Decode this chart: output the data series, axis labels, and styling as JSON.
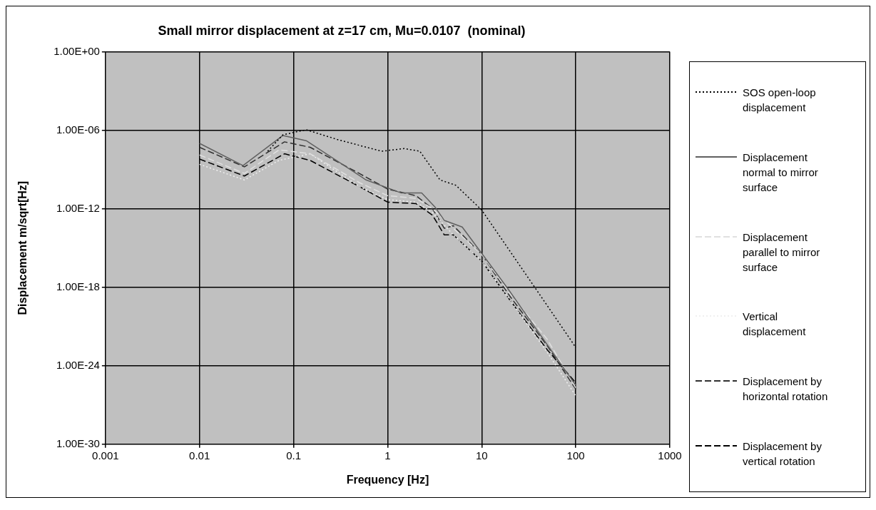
{
  "chart_data": {
    "type": "line",
    "title": "Small mirror displacement at z=17 cm, Mu=0.0107  (nominal)",
    "xlabel": "Frequency [Hz]",
    "ylabel": "Displacement m/sqrt[Hz]",
    "log": "xy",
    "grid": true,
    "legend": "right",
    "xlim": [
      0.001,
      1000
    ],
    "xticks": [
      0.001,
      0.01,
      0.1,
      1,
      10,
      100,
      1000
    ],
    "ylim": [
      1e-30,
      1
    ],
    "yticks": [
      {
        "value": 1,
        "label": "1.00E+00"
      },
      {
        "value": 1e-06,
        "label": "1.00E-06"
      },
      {
        "value": 1e-12,
        "label": "1.00E-12"
      },
      {
        "value": 1e-18,
        "label": "1.00E-18"
      },
      {
        "value": 1e-24,
        "label": "1.00E-24"
      },
      {
        "value": 1e-30,
        "label": "1.00E-30"
      }
    ],
    "series": [
      {
        "name": "SOS open-loop displacement",
        "color": "#000000",
        "line_style": "dotted",
        "x": [
          0.053,
          0.077,
          0.136,
          0.29,
          0.86,
          1.5,
          2.2,
          3.6,
          5.3,
          10,
          35,
          100
        ],
        "values": [
          2.5e-08,
          4.5e-07,
          1.1e-06,
          2e-07,
          2.5e-08,
          4e-08,
          2.5e-08,
          1.6e-10,
          6.3e-11,
          8e-13,
          1.6e-18,
          2.5e-23
        ]
      },
      {
        "name": "Displacement normal to mirror surface",
        "color": "#606060",
        "line_style": "solid",
        "x": [
          0.01,
          0.029,
          0.077,
          0.136,
          0.59,
          1.4,
          2.3,
          3.2,
          4,
          6.2,
          18.5,
          100
        ],
        "values": [
          1e-07,
          2e-09,
          4e-07,
          1.6e-07,
          1.6e-10,
          1.6e-11,
          1.6e-11,
          1.3e-12,
          1.3e-13,
          4e-14,
          1e-18,
          3.2e-26
        ]
      },
      {
        "name": "Displacement parallel to mirror surface",
        "color": "#e0e0e0",
        "line_style": "dashed",
        "x": [
          0.01,
          0.03,
          0.07,
          0.15,
          0.5,
          1,
          2,
          3,
          5,
          10,
          20,
          50,
          100
        ],
        "values": [
          1.3e-08,
          5e-10,
          3.2e-08,
          1.6e-08,
          1e-10,
          1e-11,
          6.3e-12,
          1e-12,
          3.2e-14,
          3.2e-16,
          3.2e-19,
          1e-22,
          2e-26
        ]
      },
      {
        "name": "Vertical displacement",
        "color": "#f0f0f0",
        "line_style": "dotted",
        "x": [
          0.01,
          0.03,
          0.07,
          0.15,
          0.5,
          1,
          2,
          3,
          5,
          10,
          20,
          50,
          100
        ],
        "values": [
          2.5e-09,
          1.6e-10,
          5e-09,
          1.6e-08,
          5e-11,
          5e-12,
          3.2e-12,
          5e-13,
          1e-14,
          1e-16,
          1e-19,
          1e-23,
          5e-27
        ]
      },
      {
        "name": "Displacement by horizontal rotation",
        "color": "#303030",
        "line_style": "dashed",
        "x": [
          0.01,
          0.03,
          0.08,
          0.15,
          0.5,
          1,
          2,
          3,
          4,
          5,
          10,
          20,
          50,
          100
        ],
        "values": [
          5e-08,
          1.6e-09,
          1.3e-07,
          5e-08,
          5e-10,
          3.2e-11,
          1e-11,
          1e-12,
          3.2e-14,
          5e-14,
          3.2e-16,
          2e-19,
          3.2e-23,
          1.6e-26
        ]
      },
      {
        "name": "Displacement by vertical rotation",
        "color": "#000000",
        "line_style": "dashed",
        "x": [
          0.01,
          0.03,
          0.08,
          0.15,
          0.5,
          1,
          2,
          3,
          4,
          5,
          10,
          20,
          50,
          100
        ],
        "values": [
          6.3e-09,
          3.2e-10,
          1.6e-08,
          5e-09,
          5e-11,
          3.2e-12,
          2.5e-12,
          3.2e-13,
          1e-14,
          1e-14,
          1e-16,
          1e-19,
          1.6e-23,
          5e-26
        ]
      }
    ]
  }
}
